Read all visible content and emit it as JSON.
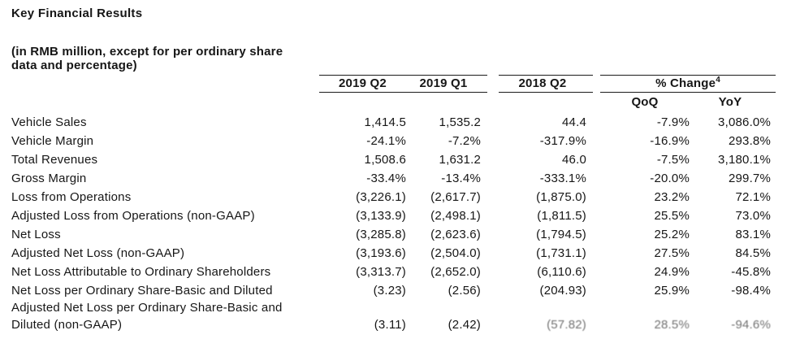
{
  "title": "Key Financial Results",
  "subtitle": {
    "line1": "(in RMB million, except for per ordinary share",
    "line2": "data and percentage)"
  },
  "table": {
    "col_headers": {
      "q2_2019": "2019 Q2",
      "q1_2019": "2019 Q1",
      "q2_2018": "2018 Q2",
      "pct_change": "% Change",
      "pct_change_footnote": "4",
      "qoq": "QoQ",
      "yoy": "YoY"
    },
    "rows": [
      {
        "label": "Vehicle Sales",
        "q2_2019": "1,414.5",
        "q1_2019": "1,535.2",
        "q2_2018": "44.4",
        "qoq": "-7.9%",
        "yoy": "3,086.0%"
      },
      {
        "label": "Vehicle Margin",
        "q2_2019": "-24.1%",
        "q1_2019": "-7.2%",
        "q2_2018": "-317.9%",
        "qoq": "-16.9%",
        "yoy": "293.8%"
      },
      {
        "label": "Total Revenues",
        "q2_2019": "1,508.6",
        "q1_2019": "1,631.2",
        "q2_2018": "46.0",
        "qoq": "-7.5%",
        "yoy": "3,180.1%"
      },
      {
        "label": "Gross Margin",
        "q2_2019": "-33.4%",
        "q1_2019": "-13.4%",
        "q2_2018": "-333.1%",
        "qoq": "-20.0%",
        "yoy": "299.7%"
      },
      {
        "label": "Loss from Operations",
        "q2_2019": "(3,226.1)",
        "q1_2019": "(2,617.7)",
        "q2_2018": "(1,875.0)",
        "qoq": "23.2%",
        "yoy": "72.1%"
      },
      {
        "label": "Adjusted Loss from Operations (non-GAAP)",
        "q2_2019": "(3,133.9)",
        "q1_2019": "(2,498.1)",
        "q2_2018": "(1,811.5)",
        "qoq": "25.5%",
        "yoy": "73.0%"
      },
      {
        "label": "Net Loss",
        "q2_2019": "(3,285.8)",
        "q1_2019": "(2,623.6)",
        "q2_2018": "(1,794.5)",
        "qoq": "25.2%",
        "yoy": "83.1%"
      },
      {
        "label": "Adjusted Net Loss (non-GAAP)",
        "q2_2019": "(3,193.6)",
        "q1_2019": "(2,504.0)",
        "q2_2018": "(1,731.1)",
        "qoq": "27.5%",
        "yoy": "84.5%"
      },
      {
        "label": "Net Loss Attributable to Ordinary Shareholders",
        "q2_2019": "(3,313.7)",
        "q1_2019": "(2,652.0)",
        "q2_2018": "(6,110.6)",
        "qoq": "24.9%",
        "yoy": "-45.8%"
      },
      {
        "label": "Net Loss per Ordinary Share-Basic and Diluted",
        "q2_2019": "(3.23)",
        "q1_2019": "(2.56)",
        "q2_2018": "(204.93)",
        "qoq": "25.9%",
        "yoy": "-98.4%"
      },
      {
        "label": "Adjusted Net Loss per Ordinary Share-Basic and Diluted (non-GAAP)",
        "q2_2019": "(3.11)",
        "q1_2019": "(2.42)",
        "q2_2018": "(57.82)",
        "qoq": "28.5%",
        "yoy": "-94.6%",
        "muted_cells": [
          "q2_2018",
          "qoq",
          "yoy"
        ]
      }
    ]
  }
}
